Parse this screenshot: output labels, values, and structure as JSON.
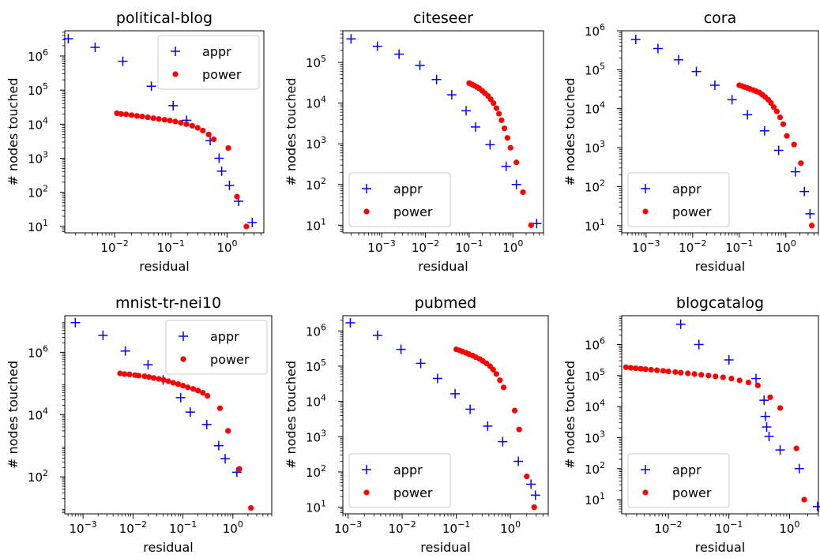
{
  "chart_data": [
    {
      "type": "scatter",
      "title": "political-blog",
      "xlabel": "residual",
      "ylabel": "# nodes touched",
      "xscale": "log",
      "yscale": "log",
      "xlim": [
        0.0013,
        4.5
      ],
      "ylim": [
        6.5,
        5500000
      ],
      "xticks": [
        {
          "exp": "-2",
          "v": 0.01
        },
        {
          "exp": "-1",
          "v": 0.1
        },
        {
          "exp": "0",
          "v": 1
        }
      ],
      "yticks": [
        {
          "exp": "1",
          "v": 10
        },
        {
          "exp": "2",
          "v": 100
        },
        {
          "exp": "3",
          "v": 1000
        },
        {
          "exp": "4",
          "v": 10000
        },
        {
          "exp": "5",
          "v": 100000
        },
        {
          "exp": "6",
          "v": 1000000
        }
      ],
      "legend": {
        "loc": "upper right"
      },
      "series": [
        {
          "name": "appr",
          "marker": "+",
          "color": "#0000ff",
          "x": [
            0.0015,
            0.0045,
            0.014,
            0.045,
            0.11,
            0.19,
            0.5,
            0.72,
            0.8,
            1.1,
            1.6,
            2.8
          ],
          "y": [
            3200000,
            1800000,
            700000,
            130000,
            35000,
            13000,
            3300,
            1000,
            420,
            160,
            55,
            13
          ]
        },
        {
          "name": "power",
          "marker": "o",
          "color": "#ff0000",
          "x": [
            0.011,
            0.013,
            0.016,
            0.02,
            0.025,
            0.031,
            0.039,
            0.049,
            0.061,
            0.077,
            0.096,
            0.12,
            0.15,
            0.19,
            0.24,
            0.3,
            0.37,
            0.47,
            0.58,
            1.05,
            1.5,
            2.2
          ],
          "y": [
            21000,
            20000,
            19500,
            18500,
            17500,
            16800,
            16000,
            15000,
            14200,
            13500,
            12800,
            12000,
            11000,
            10000,
            9000,
            7800,
            6500,
            5000,
            3600,
            2000,
            75,
            10
          ]
        }
      ]
    },
    {
      "type": "scatter",
      "title": "citeseer",
      "xlabel": "residual",
      "ylabel": "# nodes touched",
      "xscale": "log",
      "yscale": "log",
      "xlim": [
        0.00013,
        5
      ],
      "ylim": [
        6.5,
        600000
      ],
      "xticks": [
        {
          "exp": "-3",
          "v": 0.001
        },
        {
          "exp": "-2",
          "v": 0.01
        },
        {
          "exp": "-1",
          "v": 0.1
        },
        {
          "exp": "0",
          "v": 1
        }
      ],
      "yticks": [
        {
          "exp": "1",
          "v": 10
        },
        {
          "exp": "2",
          "v": 100
        },
        {
          "exp": "3",
          "v": 1000
        },
        {
          "exp": "4",
          "v": 10000
        },
        {
          "exp": "5",
          "v": 100000
        }
      ],
      "legend": {
        "loc": "lower left"
      },
      "series": [
        {
          "name": "appr",
          "marker": "+",
          "color": "#0000ff",
          "x": [
            0.0002,
            0.0008,
            0.0025,
            0.0075,
            0.018,
            0.04,
            0.085,
            0.14,
            0.3,
            0.7,
            1.2,
            3.5
          ],
          "y": [
            380000,
            250000,
            160000,
            85000,
            38000,
            16000,
            6500,
            2600,
            950,
            280,
            100,
            11
          ]
        },
        {
          "name": "power",
          "marker": "o",
          "color": "#ff0000",
          "x": [
            0.1,
            0.115,
            0.13,
            0.15,
            0.17,
            0.2,
            0.23,
            0.27,
            0.31,
            0.36,
            0.42,
            0.48,
            0.55,
            0.64,
            0.75,
            0.88,
            1.2,
            1.7,
            2.6
          ],
          "y": [
            31000,
            29000,
            27000,
            25000,
            23000,
            20000,
            17500,
            15000,
            12500,
            10000,
            7500,
            5500,
            3800,
            2400,
            1400,
            800,
            350,
            65,
            10
          ]
        }
      ]
    },
    {
      "type": "scatter",
      "title": "cora",
      "xlabel": "residual",
      "ylabel": "# nodes touched",
      "xscale": "log",
      "yscale": "log",
      "xlim": [
        0.0003,
        5
      ],
      "ylim": [
        6.5,
        1000000
      ],
      "xticks": [
        {
          "exp": "-3",
          "v": 0.001
        },
        {
          "exp": "-2",
          "v": 0.01
        },
        {
          "exp": "-1",
          "v": 0.1
        },
        {
          "exp": "0",
          "v": 1
        }
      ],
      "yticks": [
        {
          "exp": "1",
          "v": 10
        },
        {
          "exp": "2",
          "v": 100
        },
        {
          "exp": "3",
          "v": 1000
        },
        {
          "exp": "4",
          "v": 10000
        },
        {
          "exp": "5",
          "v": 100000
        },
        {
          "exp": "6",
          "v": 1000000
        }
      ],
      "legend": {
        "loc": "lower left"
      },
      "series": [
        {
          "name": "appr",
          "marker": "+",
          "color": "#0000ff",
          "x": [
            0.0006,
            0.0018,
            0.005,
            0.012,
            0.03,
            0.07,
            0.15,
            0.35,
            0.7,
            1.6,
            2.5,
            3.3
          ],
          "y": [
            600000,
            350000,
            180000,
            90000,
            40000,
            17000,
            7000,
            2700,
            850,
            240,
            75,
            20
          ]
        },
        {
          "name": "power",
          "marker": "o",
          "color": "#ff0000",
          "x": [
            0.1,
            0.115,
            0.13,
            0.15,
            0.17,
            0.2,
            0.23,
            0.27,
            0.31,
            0.36,
            0.42,
            0.48,
            0.55,
            0.64,
            0.75,
            0.88,
            1.05,
            1.5,
            2.1,
            3.6
          ],
          "y": [
            40000,
            38000,
            36000,
            34000,
            32000,
            30000,
            28000,
            26000,
            23000,
            20000,
            17000,
            14000,
            11000,
            8500,
            6000,
            4000,
            2000,
            1200,
            400,
            10
          ]
        }
      ]
    },
    {
      "type": "scatter",
      "title": "mnist-tr-nei10",
      "xlabel": "residual",
      "ylabel": "# nodes touched",
      "xscale": "log",
      "yscale": "log",
      "xlim": [
        0.00043,
        6
      ],
      "ylim": [
        6.5,
        15000000
      ],
      "xticks": [
        {
          "exp": "-3",
          "v": 0.001
        },
        {
          "exp": "-2",
          "v": 0.01
        },
        {
          "exp": "-1",
          "v": 0.1
        },
        {
          "exp": "0",
          "v": 1
        }
      ],
      "yticks": [
        {
          "exp": "2",
          "v": 100
        },
        {
          "exp": "4",
          "v": 10000
        },
        {
          "exp": "6",
          "v": 1000000
        }
      ],
      "legend": {
        "loc": "upper right"
      },
      "series": [
        {
          "name": "appr",
          "marker": "+",
          "color": "#0000ff",
          "x": [
            0.0007,
            0.0025,
            0.007,
            0.02,
            0.04,
            0.09,
            0.14,
            0.3,
            0.52,
            0.7,
            1.2
          ],
          "y": [
            9000000,
            3500000,
            1100000,
            400000,
            130000,
            35000,
            12000,
            4800,
            1000,
            380,
            140
          ]
        },
        {
          "name": "power",
          "marker": "o",
          "color": "#ff0000",
          "x": [
            0.0055,
            0.0068,
            0.0085,
            0.011,
            0.013,
            0.017,
            0.021,
            0.026,
            0.033,
            0.041,
            0.051,
            0.064,
            0.08,
            0.1,
            0.125,
            0.16,
            0.2,
            0.25,
            0.31,
            0.55,
            0.8,
            1.35,
            2.3
          ],
          "y": [
            210000,
            200000,
            195000,
            185000,
            178000,
            170000,
            160000,
            150000,
            140000,
            130000,
            118000,
            105000,
            95000,
            85000,
            75000,
            67000,
            59000,
            50000,
            40000,
            16000,
            3000,
            180,
            10
          ]
        }
      ]
    },
    {
      "type": "scatter",
      "title": "pubmed",
      "xlabel": "residual",
      "ylabel": "# nodes touched",
      "xscale": "log",
      "yscale": "log",
      "xlim": [
        0.0008,
        5
      ],
      "ylim": [
        6.5,
        2700000
      ],
      "xticks": [
        {
          "exp": "-3",
          "v": 0.001
        },
        {
          "exp": "-2",
          "v": 0.01
        },
        {
          "exp": "-1",
          "v": 0.1
        },
        {
          "exp": "0",
          "v": 1
        }
      ],
      "yticks": [
        {
          "exp": "1",
          "v": 10
        },
        {
          "exp": "2",
          "v": 100
        },
        {
          "exp": "3",
          "v": 1000
        },
        {
          "exp": "4",
          "v": 10000
        },
        {
          "exp": "5",
          "v": 100000
        },
        {
          "exp": "6",
          "v": 1000000
        }
      ],
      "legend": {
        "loc": "lower left"
      },
      "series": [
        {
          "name": "appr",
          "marker": "+",
          "color": "#0000ff",
          "x": [
            0.0011,
            0.0035,
            0.0095,
            0.022,
            0.045,
            0.095,
            0.18,
            0.38,
            0.72,
            1.4,
            2.4,
            2.9
          ],
          "y": [
            1700000,
            750000,
            300000,
            120000,
            45000,
            16500,
            6000,
            2000,
            720,
            200,
            45,
            22
          ]
        },
        {
          "name": "power",
          "marker": "o",
          "color": "#ff0000",
          "x": [
            0.1,
            0.115,
            0.13,
            0.15,
            0.17,
            0.2,
            0.23,
            0.27,
            0.31,
            0.36,
            0.42,
            0.48,
            0.55,
            0.64,
            0.75,
            1.2,
            1.45,
            2.0,
            2.75
          ],
          "y": [
            300000,
            280000,
            260000,
            240000,
            220000,
            200000,
            180000,
            160000,
            140000,
            120000,
            100000,
            80000,
            60000,
            40000,
            25000,
            5500,
            1600,
            75,
            10
          ]
        }
      ]
    },
    {
      "type": "scatter",
      "title": "blogcatalog",
      "xlabel": "residual",
      "ylabel": "# nodes touched",
      "xscale": "log",
      "yscale": "log",
      "xlim": [
        0.0017,
        3
      ],
      "ylim": [
        3.5,
        8500000
      ],
      "xticks": [
        {
          "exp": "-2",
          "v": 0.01
        },
        {
          "exp": "-1",
          "v": 0.1
        },
        {
          "exp": "0",
          "v": 1
        }
      ],
      "yticks": [
        {
          "exp": "1",
          "v": 10
        },
        {
          "exp": "2",
          "v": 100
        },
        {
          "exp": "3",
          "v": 1000
        },
        {
          "exp": "4",
          "v": 10000
        },
        {
          "exp": "5",
          "v": 100000
        },
        {
          "exp": "6",
          "v": 1000000
        }
      ],
      "legend": {
        "loc": "lower left"
      },
      "series": [
        {
          "name": "appr",
          "marker": "+",
          "color": "#0000ff",
          "x": [
            0.016,
            0.032,
            0.1,
            0.28,
            0.38,
            0.4,
            0.42,
            0.46,
            0.7,
            1.45,
            2.9
          ],
          "y": [
            4500000,
            1000000,
            320000,
            80000,
            16000,
            4800,
            2200,
            1100,
            400,
            100,
            6
          ]
        },
        {
          "name": "power",
          "marker": "o",
          "color": "#ff0000",
          "x": [
            0.002,
            0.0024,
            0.0029,
            0.0035,
            0.0042,
            0.0052,
            0.0065,
            0.0082,
            0.01,
            0.013,
            0.016,
            0.021,
            0.027,
            0.035,
            0.046,
            0.06,
            0.08,
            0.11,
            0.15,
            0.21,
            0.3,
            0.48,
            0.7,
            1.3,
            1.75
          ],
          "y": [
            185000,
            178000,
            172000,
            166000,
            160000,
            154000,
            148000,
            142000,
            136000,
            130000,
            124000,
            118000,
            112000,
            106000,
            100000,
            94000,
            88000,
            80000,
            70000,
            60000,
            48000,
            20000,
            9000,
            450,
            10
          ]
        }
      ]
    }
  ]
}
